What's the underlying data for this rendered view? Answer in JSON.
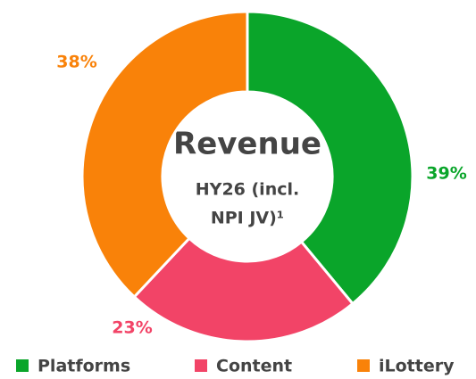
{
  "chart_data": {
    "type": "donut",
    "title": "Revenue",
    "subtitle": [
      "HY26 (incl.",
      "NPI JV)¹"
    ],
    "categories": [
      "Platforms",
      "Content",
      "iLottery"
    ],
    "values": [
      39,
      23,
      38
    ],
    "value_labels": [
      "39%",
      "23%",
      "38%"
    ],
    "colors": [
      "#0aa52a",
      "#f24467",
      "#f98209"
    ],
    "legend": "bottom"
  }
}
